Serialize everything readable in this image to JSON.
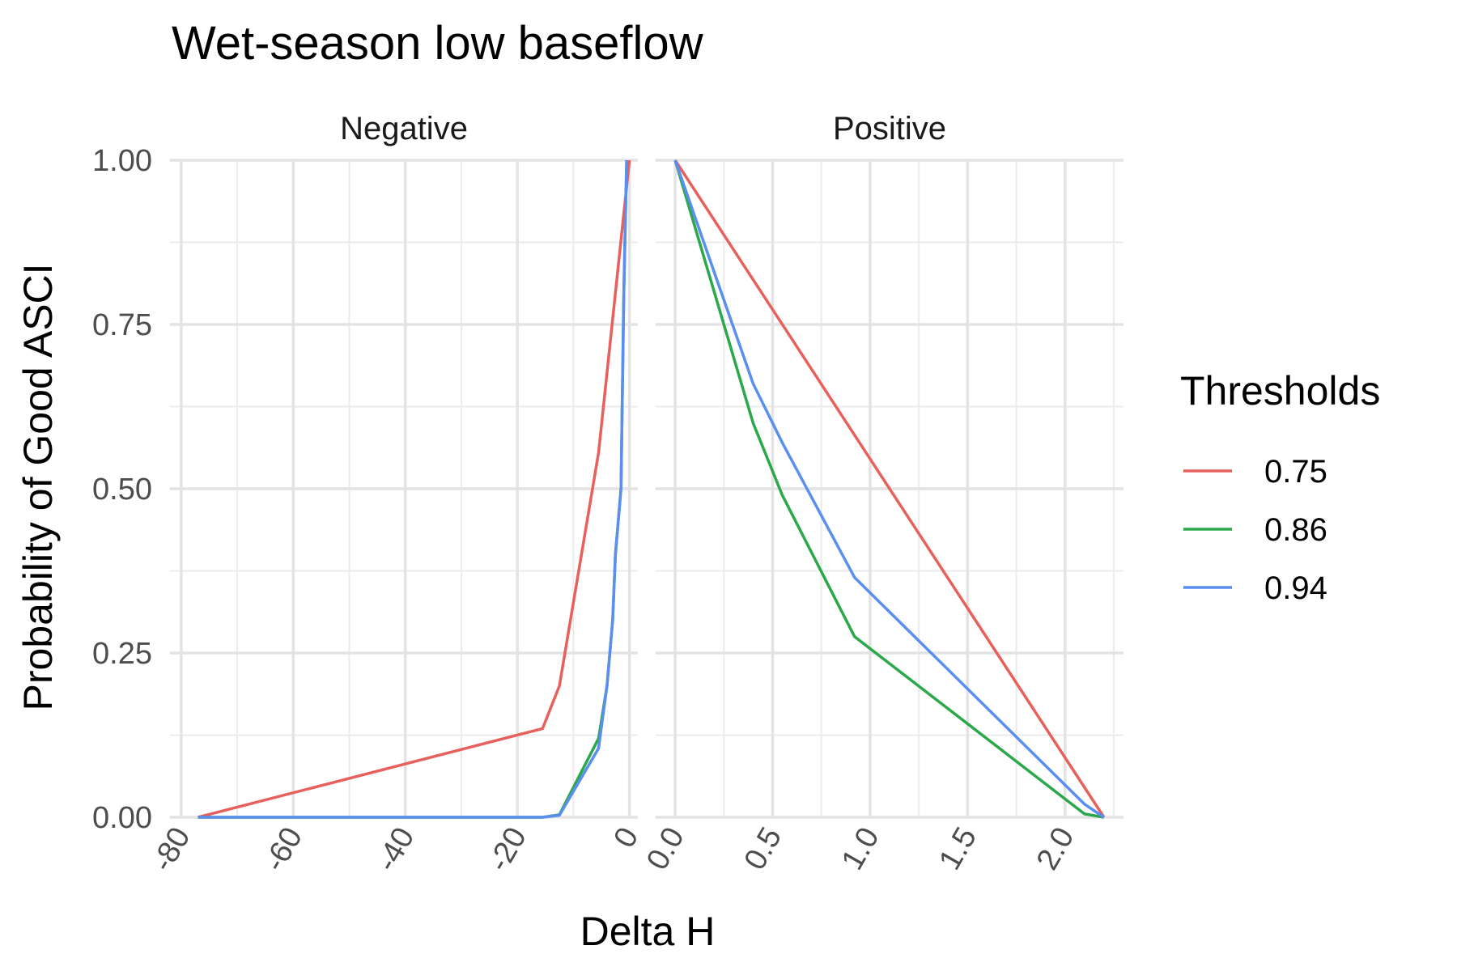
{
  "chart_data": {
    "type": "line",
    "title": "Wet-season low baseflow",
    "xlabel": "Delta H",
    "ylabel": "Probability of Good ASCI",
    "ylim": [
      0,
      1
    ],
    "y_ticks": [
      "0.00",
      "0.25",
      "0.50",
      "0.75",
      "1.00"
    ],
    "y_tick_values": [
      0,
      0.25,
      0.5,
      0.75,
      1.0
    ],
    "grid": true,
    "legend": {
      "title": "Thresholds",
      "position": "right",
      "entries": [
        "0.75",
        "0.86",
        "0.94"
      ]
    },
    "colors": {
      "0.75": "#e8605c",
      "0.86": "#2aa84a",
      "0.94": "#5a8ef0"
    },
    "panels": [
      {
        "label": "Negative",
        "xlim": [
          -82,
          1.5
        ],
        "x_ticks": [
          "-80",
          "-60",
          "-40",
          "-20",
          "0"
        ],
        "x_tick_values": [
          -80,
          -60,
          -40,
          -20,
          0
        ],
        "series": [
          {
            "name": "0.75",
            "x": [
              -77,
              -15.5,
              -12.5,
              -5.5,
              0
            ],
            "y": [
              0.0,
              0.135,
              0.2,
              0.555,
              1.0
            ]
          },
          {
            "name": "0.86",
            "x": [
              -77,
              -15.5,
              -12.5,
              -5.5,
              -4,
              -3,
              -2.5,
              -1.5,
              -1,
              -0.5
            ],
            "y": [
              0.0,
              0.0,
              0.004,
              0.12,
              0.2,
              0.3,
              0.4,
              0.5,
              0.8,
              1.0
            ]
          },
          {
            "name": "0.94",
            "x": [
              -77,
              -15.5,
              -12.5,
              -5.5,
              -4,
              -3,
              -2.5,
              -1.5,
              -1,
              -0.5
            ],
            "y": [
              0.0,
              0.0,
              0.003,
              0.105,
              0.2,
              0.3,
              0.4,
              0.5,
              0.8,
              1.0
            ]
          }
        ]
      },
      {
        "label": "Positive",
        "xlim": [
          -0.1,
          2.3
        ],
        "x_ticks": [
          "0.0",
          "0.5",
          "1.0",
          "1.5",
          "2.0"
        ],
        "x_tick_values": [
          0,
          0.5,
          1.0,
          1.5,
          2.0
        ],
        "series": [
          {
            "name": "0.75",
            "x": [
              0,
              2.2
            ],
            "y": [
              1.0,
              0.0
            ]
          },
          {
            "name": "0.86",
            "x": [
              0,
              0.4,
              0.55,
              0.92,
              2.1,
              2.2
            ],
            "y": [
              1.0,
              0.6,
              0.49,
              0.275,
              0.005,
              0.0
            ]
          },
          {
            "name": "0.94",
            "x": [
              0,
              0.4,
              0.55,
              0.92,
              2.1,
              2.2
            ],
            "y": [
              1.0,
              0.66,
              0.57,
              0.365,
              0.02,
              0.0
            ]
          }
        ]
      }
    ]
  }
}
